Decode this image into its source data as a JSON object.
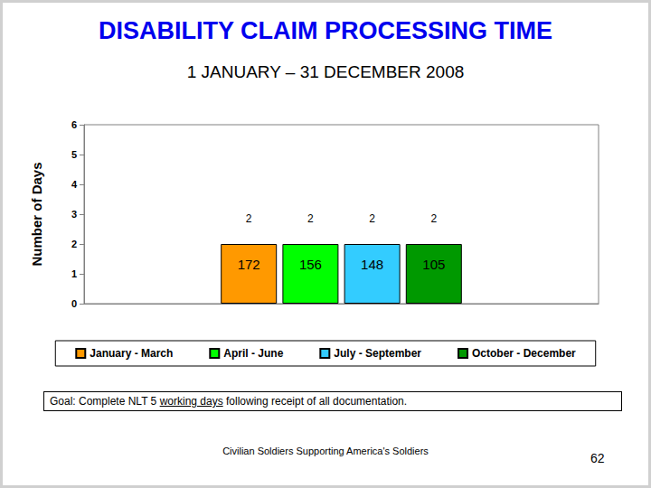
{
  "chart_data": {
    "type": "bar",
    "title": "DISABILITY CLAIM PROCESSING TIME",
    "subtitle": "1 JANUARY – 31 DECEMBER 2008",
    "y_label": "Number of Days",
    "categories": [
      null
    ],
    "series": [
      {
        "name": "January - March",
        "color": "#FF9900",
        "values": [
          2
        ],
        "claims": [
          172
        ]
      },
      {
        "name": "April - June",
        "color": "#00FF00",
        "values": [
          2
        ],
        "claims": [
          156
        ]
      },
      {
        "name": "July - September",
        "color": "#33CCFF",
        "values": [
          2
        ],
        "claims": [
          148
        ]
      },
      {
        "name": "October - December",
        "color": "#009900",
        "values": [
          2
        ],
        "claims": [
          105
        ]
      }
    ],
    "ylim": [
      0,
      6
    ],
    "yticks": [
      0,
      1,
      2,
      3,
      4,
      5,
      6
    ],
    "grid": false,
    "legend": "bottom",
    "data_labels": true,
    "annotations": {
      "goal": [
        "Goal:  Complete NLT 5 ",
        "working days",
        " following receipt of all documentation."
      ],
      "footer": "Civilian Soldiers Supporting America's Soldiers",
      "page": "62"
    }
  }
}
